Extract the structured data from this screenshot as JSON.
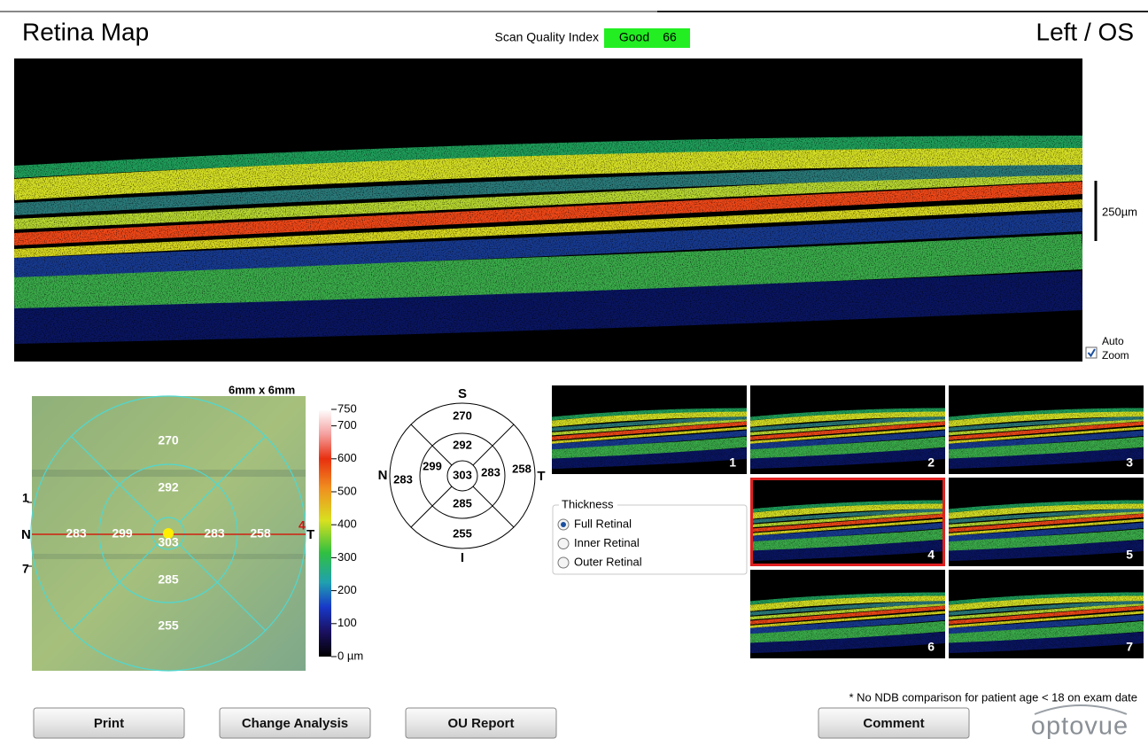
{
  "header": {
    "title": "Retina Map",
    "scan_quality_label": "Scan Quality Index",
    "quality_rating": "Good",
    "quality_score": 66,
    "eye": "Left / OS"
  },
  "bscan": {
    "scale_label": "250µm",
    "auto_zoom_label": [
      "Auto",
      "Zoom"
    ],
    "auto_zoom": true
  },
  "thickness_map": {
    "size_label": "6mm x 6mm",
    "orientation": {
      "nasal": "N",
      "temporal": "T",
      "superior": "S",
      "inferior": "I"
    },
    "line_labels": [
      "1",
      "7",
      "4"
    ],
    "sectors": {
      "center": 303,
      "inner_superior": 292,
      "inner_nasal": 299,
      "inner_temporal": 283,
      "inner_inferior": 285,
      "outer_superior": 270,
      "outer_nasal": 283,
      "outer_temporal": 258,
      "outer_inferior": 255
    }
  },
  "colorbar": {
    "range": [
      0,
      750
    ],
    "ticks": [
      750,
      700,
      600,
      500,
      400,
      300,
      200,
      100,
      {
        "value": 0,
        "label": "0 µm"
      }
    ]
  },
  "thumbnails": {
    "labels": [
      "1",
      "2",
      "3",
      "4",
      "5",
      "6",
      "7"
    ],
    "selected": 3
  },
  "thickness_options": {
    "title": "Thickness",
    "options": [
      "Full Retinal",
      "Inner Retinal",
      "Outer Retinal"
    ],
    "selected": 0
  },
  "footnote": "* No NDB comparison for patient age < 18 on exam date",
  "buttons": [
    "Print",
    "Change Analysis",
    "OU Report",
    "Comment"
  ],
  "logo": "optovue"
}
